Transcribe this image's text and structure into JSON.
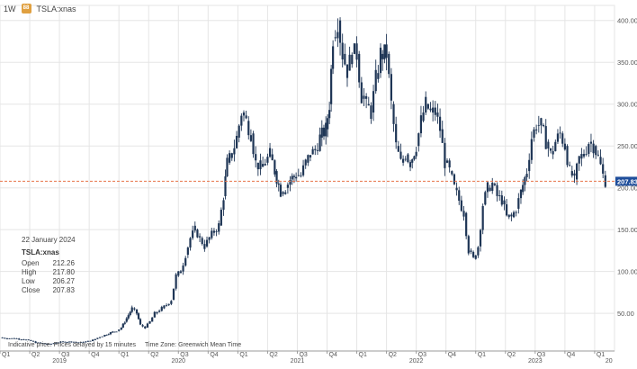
{
  "header": {
    "interval": "1W",
    "symbol": "TSLA:xnas",
    "badge_glyph": "88",
    "badge_color": "#e0a040"
  },
  "info": {
    "date": "22 January 2024",
    "symbol": "TSLA:xnas",
    "rows": [
      {
        "label": "Open",
        "value": "212.26"
      },
      {
        "label": "High",
        "value": "217.80"
      },
      {
        "label": "Low",
        "value": "206.27"
      },
      {
        "label": "Close",
        "value": "207.83"
      }
    ]
  },
  "disclaimer": {
    "delay": "Indicative price. Prices delayed by 15 minutes",
    "timezone": "Time Zone: Greenwich Mean Time"
  },
  "chart_data": {
    "type": "candlestick",
    "timeframe": "weekly",
    "y_ticks": [
      50,
      100,
      150,
      200,
      250,
      300,
      350,
      400
    ],
    "y_tick_labels": [
      "50.00",
      "100.00",
      "150.00",
      "200.00",
      "250.00",
      "300.00",
      "350.00",
      "400.00"
    ],
    "ylim": [
      5,
      418
    ],
    "xlim": [
      2019.0,
      2024.167
    ],
    "quarter_ticks": [
      {
        "x": 2019.0,
        "label": "Q1"
      },
      {
        "x": 2019.25,
        "label": "Q2"
      },
      {
        "x": 2019.5,
        "label": "Q3"
      },
      {
        "x": 2019.75,
        "label": "Q4"
      },
      {
        "x": 2020.0,
        "label": "Q1"
      },
      {
        "x": 2020.25,
        "label": "Q2"
      },
      {
        "x": 2020.5,
        "label": "Q3"
      },
      {
        "x": 2020.75,
        "label": "Q4"
      },
      {
        "x": 2021.0,
        "label": "Q1"
      },
      {
        "x": 2021.25,
        "label": "Q2"
      },
      {
        "x": 2021.5,
        "label": "Q3"
      },
      {
        "x": 2021.75,
        "label": "Q4"
      },
      {
        "x": 2022.0,
        "label": "Q1"
      },
      {
        "x": 2022.25,
        "label": "Q2"
      },
      {
        "x": 2022.5,
        "label": "Q3"
      },
      {
        "x": 2022.75,
        "label": "Q4"
      },
      {
        "x": 2023.0,
        "label": "Q1"
      },
      {
        "x": 2023.25,
        "label": "Q2"
      },
      {
        "x": 2023.5,
        "label": "Q3"
      },
      {
        "x": 2023.75,
        "label": "Q4"
      },
      {
        "x": 2024.0,
        "label": "Q1"
      }
    ],
    "year_labels": [
      {
        "x": 2019.5,
        "label": "2019"
      },
      {
        "x": 2020.5,
        "label": "2020"
      },
      {
        "x": 2021.5,
        "label": "2021"
      },
      {
        "x": 2022.5,
        "label": "2022"
      },
      {
        "x": 2023.5,
        "label": "2023"
      },
      {
        "x": 2024.12,
        "label": "20"
      }
    ],
    "last_price": 207.83,
    "last_price_label": "207.83",
    "colors": {
      "candle": "#1e3555",
      "price_line": "#e8744a",
      "price_tag": "#1f4e9b",
      "grid": "#e5e5e5",
      "axis": "#999999"
    },
    "closes": [
      [
        2019.0,
        21
      ],
      [
        2019.06,
        20
      ],
      [
        2019.12,
        20
      ],
      [
        2019.18,
        19
      ],
      [
        2019.24,
        18
      ],
      [
        2019.3,
        15
      ],
      [
        2019.36,
        14
      ],
      [
        2019.41,
        13
      ],
      [
        2019.47,
        15
      ],
      [
        2019.53,
        16
      ],
      [
        2019.6,
        16
      ],
      [
        2019.66,
        15
      ],
      [
        2019.72,
        16
      ],
      [
        2019.78,
        18
      ],
      [
        2019.84,
        22
      ],
      [
        2019.88,
        24
      ],
      [
        2019.93,
        27
      ],
      [
        2019.98,
        29
      ],
      [
        2020.02,
        33
      ],
      [
        2020.05,
        40
      ],
      [
        2020.08,
        48
      ],
      [
        2020.11,
        56
      ],
      [
        2020.15,
        50
      ],
      [
        2020.18,
        36
      ],
      [
        2020.22,
        33
      ],
      [
        2020.26,
        40
      ],
      [
        2020.3,
        50
      ],
      [
        2020.36,
        56
      ],
      [
        2020.4,
        60
      ],
      [
        2020.44,
        66
      ],
      [
        2020.48,
        95
      ],
      [
        2020.52,
        100
      ],
      [
        2020.56,
        120
      ],
      [
        2020.6,
        140
      ],
      [
        2020.64,
        150
      ],
      [
        2020.68,
        140
      ],
      [
        2020.72,
        130
      ],
      [
        2020.76,
        140
      ],
      [
        2020.8,
        148
      ],
      [
        2020.84,
        155
      ],
      [
        2020.88,
        190
      ],
      [
        2020.91,
        230
      ],
      [
        2020.95,
        240
      ],
      [
        2020.99,
        260
      ],
      [
        2021.03,
        290
      ],
      [
        2021.07,
        280
      ],
      [
        2021.11,
        265
      ],
      [
        2021.15,
        230
      ],
      [
        2021.19,
        225
      ],
      [
        2021.23,
        230
      ],
      [
        2021.27,
        240
      ],
      [
        2021.31,
        220
      ],
      [
        2021.36,
        195
      ],
      [
        2021.4,
        200
      ],
      [
        2021.44,
        210
      ],
      [
        2021.49,
        215
      ],
      [
        2021.53,
        215
      ],
      [
        2021.57,
        230
      ],
      [
        2021.61,
        240
      ],
      [
        2021.65,
        245
      ],
      [
        2021.69,
        260
      ],
      [
        2021.74,
        270
      ],
      [
        2021.77,
        300
      ],
      [
        2021.8,
        380
      ],
      [
        2021.84,
        400
      ],
      [
        2021.88,
        360
      ],
      [
        2021.92,
        340
      ],
      [
        2021.96,
        360
      ],
      [
        2022.0,
        360
      ],
      [
        2022.04,
        310
      ],
      [
        2022.08,
        300
      ],
      [
        2022.12,
        290
      ],
      [
        2022.16,
        330
      ],
      [
        2022.2,
        360
      ],
      [
        2022.25,
        360
      ],
      [
        2022.29,
        300
      ],
      [
        2022.33,
        250
      ],
      [
        2022.37,
        230
      ],
      [
        2022.41,
        240
      ],
      [
        2022.45,
        230
      ],
      [
        2022.5,
        250
      ],
      [
        2022.54,
        280
      ],
      [
        2022.58,
        300
      ],
      [
        2022.62,
        290
      ],
      [
        2022.66,
        290
      ],
      [
        2022.7,
        270
      ],
      [
        2022.74,
        230
      ],
      [
        2022.78,
        220
      ],
      [
        2022.82,
        200
      ],
      [
        2022.86,
        185
      ],
      [
        2022.9,
        170
      ],
      [
        2022.94,
        125
      ],
      [
        2022.98,
        115
      ],
      [
        2023.02,
        130
      ],
      [
        2023.06,
        180
      ],
      [
        2023.1,
        200
      ],
      [
        2023.14,
        205
      ],
      [
        2023.18,
        190
      ],
      [
        2023.22,
        185
      ],
      [
        2023.26,
        165
      ],
      [
        2023.3,
        165
      ],
      [
        2023.34,
        175
      ],
      [
        2023.38,
        195
      ],
      [
        2023.43,
        220
      ],
      [
        2023.47,
        260
      ],
      [
        2023.51,
        275
      ],
      [
        2023.55,
        275
      ],
      [
        2023.59,
        255
      ],
      [
        2023.63,
        240
      ],
      [
        2023.67,
        255
      ],
      [
        2023.71,
        265
      ],
      [
        2023.75,
        250
      ],
      [
        2023.79,
        220
      ],
      [
        2023.83,
        210
      ],
      [
        2023.87,
        235
      ],
      [
        2023.91,
        240
      ],
      [
        2023.95,
        255
      ],
      [
        2023.99,
        250
      ],
      [
        2024.03,
        237
      ],
      [
        2024.07,
        215
      ],
      [
        2024.09,
        208
      ]
    ]
  }
}
